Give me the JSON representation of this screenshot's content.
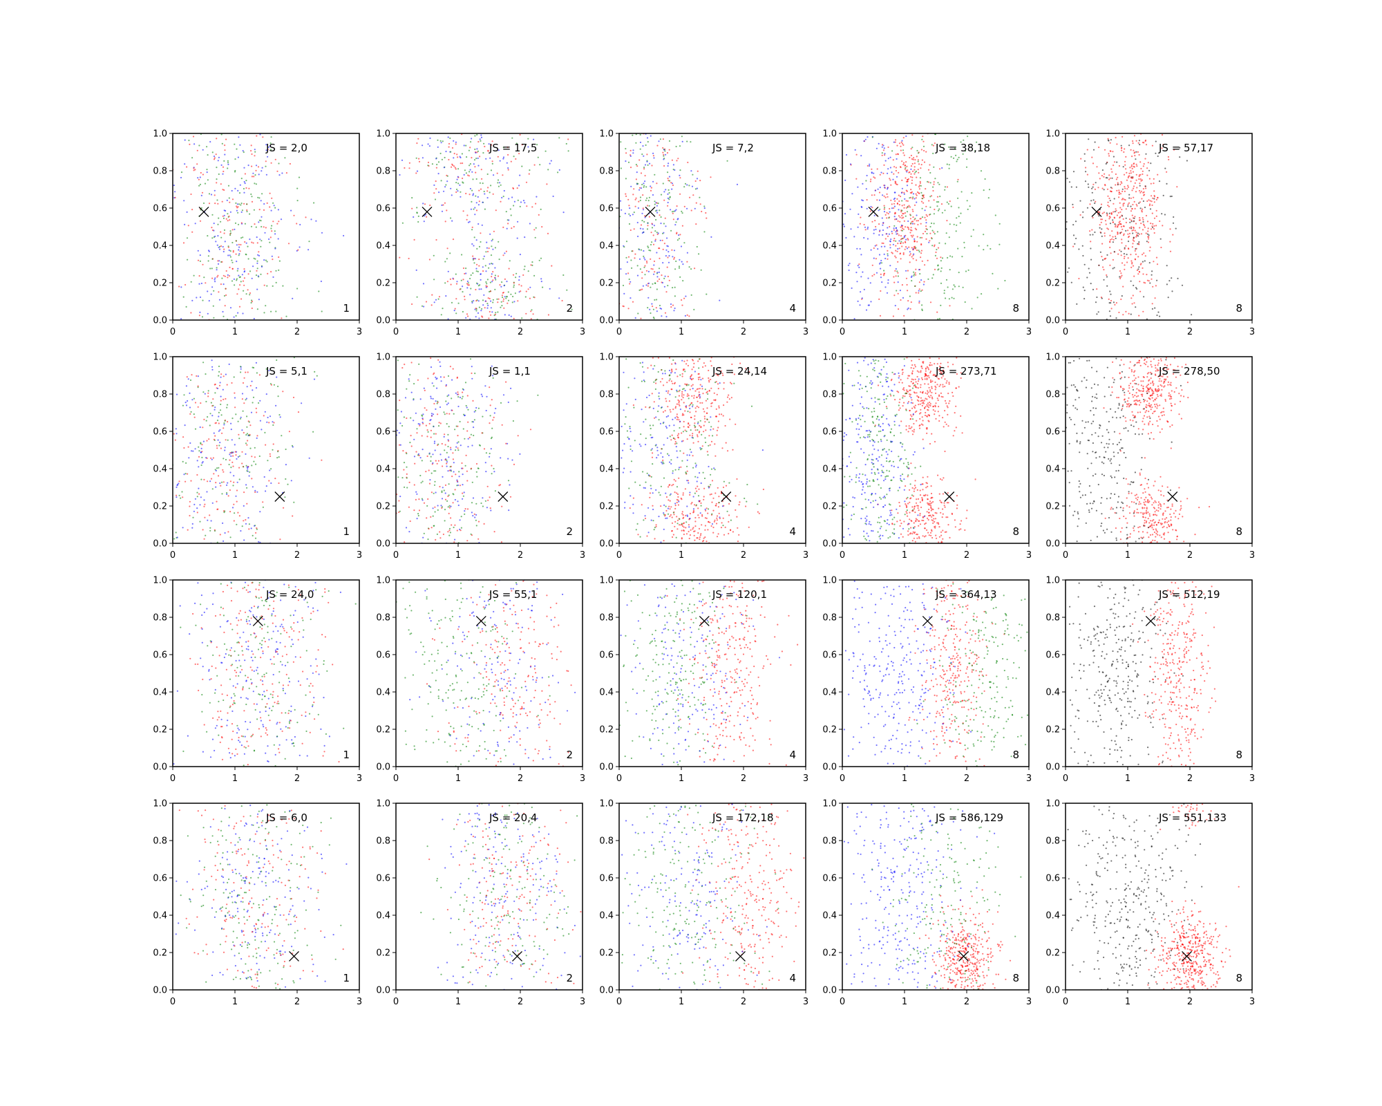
{
  "colors": {
    "red": "#ff0000",
    "green": "#008000",
    "blue": "#0000ff",
    "black": "#000000"
  },
  "chart_data": {
    "type": "scatter",
    "layout": "grid",
    "rows": 4,
    "cols": 5,
    "xlim": [
      0,
      3
    ],
    "ylim": [
      0,
      1
    ],
    "xticks": [
      "0",
      "1",
      "2",
      "3"
    ],
    "yticks": [
      "0.0",
      "0.2",
      "0.4",
      "0.6",
      "0.8",
      "1.0"
    ],
    "grid": false,
    "marker_label": "X",
    "panels": [
      {
        "row": 0,
        "col": 0,
        "annotation": "JS = 2,0",
        "corner_label": "1",
        "marker": [
          0.5,
          0.58
        ],
        "palette": [
          "red",
          "green",
          "blue"
        ],
        "clusters": [
          {
            "cx": 1.0,
            "cy": 0.5,
            "sx": 0.5,
            "sy": 0.4,
            "color": "mix",
            "n": 650
          }
        ]
      },
      {
        "row": 0,
        "col": 1,
        "annotation": "JS = 17,5",
        "corner_label": "2",
        "marker": [
          0.5,
          0.58
        ],
        "palette": [
          "red",
          "green",
          "blue"
        ],
        "clusters": [
          {
            "cx": 1.3,
            "cy": 0.85,
            "sx": 0.6,
            "sy": 0.2,
            "color": "mix",
            "n": 400
          },
          {
            "cx": 1.5,
            "cy": 0.12,
            "sx": 0.5,
            "sy": 0.15,
            "color": "mix",
            "n": 350
          }
        ]
      },
      {
        "row": 0,
        "col": 2,
        "annotation": "JS = 7,2",
        "corner_label": "4",
        "marker": [
          0.5,
          0.58
        ],
        "palette": [
          "red",
          "green",
          "blue"
        ],
        "clusters": [
          {
            "cx": 0.6,
            "cy": 0.5,
            "sx": 0.4,
            "sy": 0.45,
            "color": "mix",
            "n": 650
          }
        ]
      },
      {
        "row": 0,
        "col": 3,
        "annotation": "JS = 38,18",
        "corner_label": "8",
        "marker": [
          0.5,
          0.58
        ],
        "palette": [
          "red",
          "green",
          "blue"
        ],
        "clusters": [
          {
            "cx": 1.0,
            "cy": 0.6,
            "sx": 0.3,
            "sy": 0.25,
            "color": "red",
            "n": 450
          },
          {
            "cx": 0.6,
            "cy": 0.5,
            "sx": 0.35,
            "sy": 0.35,
            "color": "blue",
            "n": 250
          },
          {
            "cx": 1.6,
            "cy": 0.5,
            "sx": 0.4,
            "sy": 0.4,
            "color": "green",
            "n": 250
          }
        ]
      },
      {
        "row": 0,
        "col": 4,
        "annotation": "JS = 57,17",
        "corner_label": "8",
        "marker": [
          0.5,
          0.58
        ],
        "palette": [
          "red",
          "black"
        ],
        "clusters": [
          {
            "cx": 1.0,
            "cy": 0.6,
            "sx": 0.3,
            "sy": 0.25,
            "color": "red",
            "n": 500
          },
          {
            "cx": 0.8,
            "cy": 0.5,
            "sx": 0.6,
            "sy": 0.4,
            "color": "black",
            "n": 300
          }
        ]
      },
      {
        "row": 1,
        "col": 0,
        "annotation": "JS = 5,1",
        "corner_label": "1",
        "marker": [
          1.72,
          0.25
        ],
        "palette": [
          "red",
          "green",
          "blue"
        ],
        "clusters": [
          {
            "cx": 0.9,
            "cy": 0.5,
            "sx": 0.55,
            "sy": 0.4,
            "color": "mix",
            "n": 650
          }
        ]
      },
      {
        "row": 1,
        "col": 1,
        "annotation": "JS = 1,1",
        "corner_label": "2",
        "marker": [
          1.72,
          0.25
        ],
        "palette": [
          "red",
          "green",
          "blue"
        ],
        "clusters": [
          {
            "cx": 0.8,
            "cy": 0.5,
            "sx": 0.5,
            "sy": 0.4,
            "color": "mix",
            "n": 650
          }
        ]
      },
      {
        "row": 1,
        "col": 2,
        "annotation": "JS = 24,14",
        "corner_label": "4",
        "marker": [
          1.72,
          0.25
        ],
        "palette": [
          "red",
          "green",
          "blue"
        ],
        "clusters": [
          {
            "cx": 1.2,
            "cy": 0.8,
            "sx": 0.35,
            "sy": 0.15,
            "color": "red",
            "n": 300
          },
          {
            "cx": 1.2,
            "cy": 0.15,
            "sx": 0.4,
            "sy": 0.12,
            "color": "red",
            "n": 250
          },
          {
            "cx": 0.8,
            "cy": 0.5,
            "sx": 0.45,
            "sy": 0.35,
            "color": "blue",
            "n": 200
          },
          {
            "cx": 0.8,
            "cy": 0.5,
            "sx": 0.45,
            "sy": 0.35,
            "color": "green",
            "n": 200
          }
        ]
      },
      {
        "row": 1,
        "col": 3,
        "annotation": "JS = 273,71",
        "corner_label": "8",
        "marker": [
          1.72,
          0.25
        ],
        "palette": [
          "red",
          "green",
          "blue"
        ],
        "clusters": [
          {
            "cx": 1.35,
            "cy": 0.82,
            "sx": 0.25,
            "sy": 0.12,
            "color": "red",
            "n": 350
          },
          {
            "cx": 1.35,
            "cy": 0.15,
            "sx": 0.25,
            "sy": 0.1,
            "color": "red",
            "n": 250
          },
          {
            "cx": 0.5,
            "cy": 0.5,
            "sx": 0.35,
            "sy": 0.4,
            "color": "blue",
            "n": 300
          },
          {
            "cx": 0.6,
            "cy": 0.5,
            "sx": 0.3,
            "sy": 0.4,
            "color": "green",
            "n": 250
          }
        ]
      },
      {
        "row": 1,
        "col": 4,
        "annotation": "JS = 278,50",
        "corner_label": "8",
        "marker": [
          1.72,
          0.25
        ],
        "palette": [
          "red",
          "black"
        ],
        "clusters": [
          {
            "cx": 1.35,
            "cy": 0.82,
            "sx": 0.25,
            "sy": 0.12,
            "color": "red",
            "n": 350
          },
          {
            "cx": 1.35,
            "cy": 0.15,
            "sx": 0.25,
            "sy": 0.1,
            "color": "red",
            "n": 250
          },
          {
            "cx": 0.6,
            "cy": 0.5,
            "sx": 0.4,
            "sy": 0.4,
            "color": "black",
            "n": 350
          }
        ]
      },
      {
        "row": 2,
        "col": 0,
        "annotation": "JS = 24,0",
        "corner_label": "1",
        "marker": [
          1.37,
          0.78
        ],
        "palette": [
          "red",
          "green",
          "blue"
        ],
        "clusters": [
          {
            "cx": 1.4,
            "cy": 0.5,
            "sx": 0.55,
            "sy": 0.4,
            "color": "mix",
            "n": 650
          }
        ]
      },
      {
        "row": 2,
        "col": 1,
        "annotation": "JS = 55,1",
        "corner_label": "2",
        "marker": [
          1.37,
          0.78
        ],
        "palette": [
          "red",
          "green",
          "blue"
        ],
        "clusters": [
          {
            "cx": 1.8,
            "cy": 0.5,
            "sx": 0.5,
            "sy": 0.4,
            "color": "red",
            "n": 250
          },
          {
            "cx": 1.0,
            "cy": 0.5,
            "sx": 0.55,
            "sy": 0.4,
            "color": "green",
            "n": 250
          },
          {
            "cx": 1.6,
            "cy": 0.5,
            "sx": 0.6,
            "sy": 0.4,
            "color": "blue",
            "n": 200
          }
        ]
      },
      {
        "row": 2,
        "col": 2,
        "annotation": "JS = 120,1",
        "corner_label": "4",
        "marker": [
          1.37,
          0.78
        ],
        "palette": [
          "red",
          "green",
          "blue"
        ],
        "clusters": [
          {
            "cx": 1.8,
            "cy": 0.5,
            "sx": 0.35,
            "sy": 0.4,
            "color": "red",
            "n": 350
          },
          {
            "cx": 0.9,
            "cy": 0.5,
            "sx": 0.45,
            "sy": 0.4,
            "color": "green",
            "n": 250
          },
          {
            "cx": 1.1,
            "cy": 0.5,
            "sx": 0.5,
            "sy": 0.4,
            "color": "blue",
            "n": 200
          }
        ]
      },
      {
        "row": 2,
        "col": 3,
        "annotation": "JS = 364,13",
        "corner_label": "8",
        "marker": [
          1.37,
          0.78
        ],
        "palette": [
          "red",
          "green",
          "blue"
        ],
        "clusters": [
          {
            "cx": 1.75,
            "cy": 0.55,
            "sx": 0.25,
            "sy": 0.35,
            "color": "red",
            "n": 350
          },
          {
            "cx": 0.9,
            "cy": 0.5,
            "sx": 0.45,
            "sy": 0.4,
            "color": "blue",
            "n": 350
          },
          {
            "cx": 2.3,
            "cy": 0.5,
            "sx": 0.4,
            "sy": 0.4,
            "color": "green",
            "n": 250
          }
        ]
      },
      {
        "row": 2,
        "col": 4,
        "annotation": "JS = 512,19",
        "corner_label": "8",
        "marker": [
          1.37,
          0.78
        ],
        "palette": [
          "red",
          "black"
        ],
        "clusters": [
          {
            "cx": 1.8,
            "cy": 0.55,
            "sx": 0.25,
            "sy": 0.35,
            "color": "red",
            "n": 400
          },
          {
            "cx": 0.8,
            "cy": 0.5,
            "sx": 0.4,
            "sy": 0.4,
            "color": "black",
            "n": 400
          }
        ]
      },
      {
        "row": 3,
        "col": 0,
        "annotation": "JS = 6,0",
        "corner_label": "1",
        "marker": [
          1.95,
          0.18
        ],
        "palette": [
          "red",
          "green",
          "blue"
        ],
        "clusters": [
          {
            "cx": 1.3,
            "cy": 0.5,
            "sx": 0.55,
            "sy": 0.4,
            "color": "mix",
            "n": 650
          }
        ]
      },
      {
        "row": 3,
        "col": 1,
        "annotation": "JS = 20,4",
        "corner_label": "2",
        "marker": [
          1.95,
          0.18
        ],
        "palette": [
          "red",
          "green",
          "blue"
        ],
        "clusters": [
          {
            "cx": 1.8,
            "cy": 0.5,
            "sx": 0.5,
            "sy": 0.4,
            "color": "mix",
            "n": 650
          }
        ]
      },
      {
        "row": 3,
        "col": 2,
        "annotation": "JS = 172,18",
        "corner_label": "4",
        "marker": [
          1.95,
          0.18
        ],
        "palette": [
          "red",
          "green",
          "blue"
        ],
        "clusters": [
          {
            "cx": 2.1,
            "cy": 0.5,
            "sx": 0.4,
            "sy": 0.4,
            "color": "red",
            "n": 350
          },
          {
            "cx": 1.1,
            "cy": 0.5,
            "sx": 0.55,
            "sy": 0.4,
            "color": "green",
            "n": 250
          },
          {
            "cx": 1.1,
            "cy": 0.5,
            "sx": 0.55,
            "sy": 0.4,
            "color": "blue",
            "n": 200
          }
        ]
      },
      {
        "row": 3,
        "col": 3,
        "annotation": "JS = 586,129",
        "corner_label": "8",
        "marker": [
          1.95,
          0.18
        ],
        "palette": [
          "red",
          "green",
          "blue"
        ],
        "clusters": [
          {
            "cx": 2.0,
            "cy": 0.17,
            "sx": 0.25,
            "sy": 0.12,
            "color": "red",
            "n": 400
          },
          {
            "cx": 0.9,
            "cy": 0.5,
            "sx": 0.45,
            "sy": 0.4,
            "color": "blue",
            "n": 350
          },
          {
            "cx": 1.6,
            "cy": 0.5,
            "sx": 0.5,
            "sy": 0.4,
            "color": "green",
            "n": 200
          }
        ]
      },
      {
        "row": 3,
        "col": 4,
        "annotation": "JS = 551,133",
        "corner_label": "8",
        "marker": [
          1.95,
          0.18
        ],
        "palette": [
          "red",
          "black"
        ],
        "clusters": [
          {
            "cx": 2.0,
            "cy": 0.17,
            "sx": 0.25,
            "sy": 0.12,
            "color": "red",
            "n": 450
          },
          {
            "cx": 2.0,
            "cy": 0.95,
            "sx": 0.2,
            "sy": 0.05,
            "color": "red",
            "n": 40
          },
          {
            "cx": 1.0,
            "cy": 0.5,
            "sx": 0.5,
            "sy": 0.35,
            "color": "black",
            "n": 400
          }
        ]
      }
    ]
  }
}
